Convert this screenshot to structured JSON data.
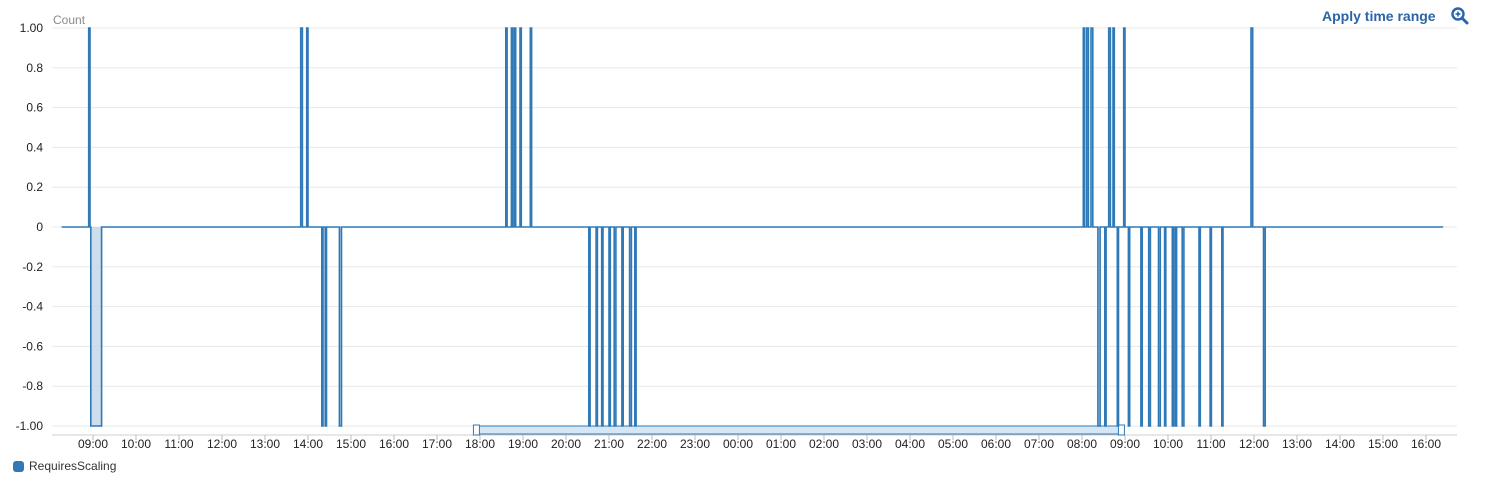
{
  "toolbar": {
    "apply_label": "Apply time range",
    "zoom_icon": "magnifier-icon"
  },
  "colors": {
    "series": "#2f79b7",
    "fill": "#bdd2e6",
    "grid": "#e8e8e8",
    "accent": "#2b64a8",
    "navigator": "#d6e6f5"
  },
  "chart_data": {
    "type": "line",
    "ylabel": "Count",
    "ylim": [
      -1,
      1
    ],
    "yticks": [
      "1.00",
      "0.8",
      "0.6",
      "0.4",
      "0.2",
      "0",
      "-0.2",
      "-0.4",
      "-0.6",
      "-0.8",
      "-1.00"
    ],
    "xticks": [
      "09:00",
      "10:00",
      "11:00",
      "12:00",
      "13:00",
      "14:00",
      "15:00",
      "16:00",
      "17:00",
      "18:00",
      "19:00",
      "20:00",
      "21:00",
      "22:00",
      "23:00",
      "00:00",
      "01:00",
      "02:00",
      "03:00",
      "04:00",
      "05:00",
      "06:00",
      "07:00",
      "08:00",
      "09:00",
      "10:00",
      "11:00",
      "12:00",
      "13:00",
      "14:00",
      "15:00",
      "16:00"
    ],
    "navigator_range": [
      "17:55",
      "08:55"
    ],
    "series": [
      {
        "name": "RequiresScaling",
        "points": [
          [
            -0.73,
            0
          ],
          [
            -0.1,
            0
          ],
          [
            -0.1,
            1
          ],
          [
            -0.07,
            1
          ],
          [
            -0.07,
            0
          ],
          [
            -0.05,
            0
          ],
          [
            -0.05,
            -1
          ],
          [
            0.2,
            -1
          ],
          [
            0.2,
            0
          ],
          [
            4.83,
            0
          ],
          [
            4.83,
            1
          ],
          [
            4.87,
            1
          ],
          [
            4.87,
            0
          ],
          [
            4.97,
            0
          ],
          [
            4.97,
            1
          ],
          [
            5.0,
            1
          ],
          [
            5.0,
            0
          ],
          [
            5.32,
            0
          ],
          [
            5.32,
            -1
          ],
          [
            5.35,
            -1
          ],
          [
            5.35,
            0
          ],
          [
            5.4,
            0
          ],
          [
            5.4,
            -1
          ],
          [
            5.43,
            -1
          ],
          [
            5.43,
            0
          ],
          [
            5.73,
            0
          ],
          [
            5.73,
            -1
          ],
          [
            5.78,
            -1
          ],
          [
            5.78,
            0
          ],
          [
            9.6,
            0
          ],
          [
            9.6,
            1
          ],
          [
            9.63,
            1
          ],
          [
            9.63,
            0
          ],
          [
            9.73,
            0
          ],
          [
            9.73,
            1
          ],
          [
            9.76,
            1
          ],
          [
            9.76,
            0
          ],
          [
            9.8,
            0
          ],
          [
            9.8,
            1
          ],
          [
            9.83,
            1
          ],
          [
            9.83,
            0
          ],
          [
            9.93,
            0
          ],
          [
            9.93,
            1
          ],
          [
            9.96,
            1
          ],
          [
            9.96,
            0
          ],
          [
            10.17,
            0
          ],
          [
            10.17,
            1
          ],
          [
            10.2,
            1
          ],
          [
            10.2,
            0
          ],
          [
            11.53,
            0
          ],
          [
            11.53,
            -1
          ],
          [
            11.56,
            -1
          ],
          [
            11.56,
            0
          ],
          [
            11.7,
            0
          ],
          [
            11.7,
            -1
          ],
          [
            11.73,
            -1
          ],
          [
            11.73,
            0
          ],
          [
            11.83,
            0
          ],
          [
            11.83,
            -1
          ],
          [
            11.86,
            -1
          ],
          [
            11.86,
            0
          ],
          [
            12.0,
            0
          ],
          [
            12.0,
            -1
          ],
          [
            12.03,
            -1
          ],
          [
            12.03,
            0
          ],
          [
            12.12,
            0
          ],
          [
            12.12,
            -1
          ],
          [
            12.16,
            -1
          ],
          [
            12.16,
            0
          ],
          [
            12.3,
            0
          ],
          [
            12.3,
            -1
          ],
          [
            12.33,
            -1
          ],
          [
            12.33,
            0
          ],
          [
            12.48,
            0
          ],
          [
            12.48,
            -1
          ],
          [
            12.52,
            -1
          ],
          [
            12.52,
            0
          ],
          [
            12.6,
            0
          ],
          [
            12.6,
            -1
          ],
          [
            12.63,
            -1
          ],
          [
            12.63,
            0
          ],
          [
            23.03,
            0
          ],
          [
            23.03,
            1
          ],
          [
            23.06,
            1
          ],
          [
            23.06,
            0
          ],
          [
            23.11,
            0
          ],
          [
            23.11,
            1
          ],
          [
            23.15,
            1
          ],
          [
            23.15,
            0
          ],
          [
            23.21,
            0
          ],
          [
            23.21,
            1
          ],
          [
            23.25,
            1
          ],
          [
            23.25,
            0
          ],
          [
            23.37,
            0
          ],
          [
            23.37,
            -1
          ],
          [
            23.42,
            -1
          ],
          [
            23.42,
            0
          ],
          [
            23.53,
            0
          ],
          [
            23.53,
            -1
          ],
          [
            23.56,
            -1
          ],
          [
            23.56,
            0
          ],
          [
            23.62,
            0
          ],
          [
            23.62,
            1
          ],
          [
            23.66,
            1
          ],
          [
            23.66,
            0
          ],
          [
            23.72,
            0
          ],
          [
            23.72,
            1
          ],
          [
            23.75,
            1
          ],
          [
            23.75,
            0
          ],
          [
            23.82,
            0
          ],
          [
            23.82,
            -1
          ],
          [
            23.85,
            -1
          ],
          [
            23.85,
            0
          ],
          [
            23.97,
            0
          ],
          [
            23.97,
            1
          ],
          [
            24.0,
            1
          ],
          [
            24.0,
            0
          ],
          [
            24.08,
            0
          ],
          [
            24.08,
            -1
          ],
          [
            24.11,
            -1
          ],
          [
            24.11,
            0
          ],
          [
            24.37,
            0
          ],
          [
            24.37,
            -1
          ],
          [
            24.4,
            -1
          ],
          [
            24.4,
            0
          ],
          [
            24.55,
            0
          ],
          [
            24.55,
            -1
          ],
          [
            24.59,
            -1
          ],
          [
            24.59,
            0
          ],
          [
            24.78,
            0
          ],
          [
            24.78,
            -1
          ],
          [
            24.82,
            -1
          ],
          [
            24.82,
            0
          ],
          [
            24.92,
            0
          ],
          [
            24.92,
            -1
          ],
          [
            24.95,
            -1
          ],
          [
            24.95,
            0
          ],
          [
            25.1,
            0
          ],
          [
            25.1,
            -1
          ],
          [
            25.13,
            -1
          ],
          [
            25.13,
            0
          ],
          [
            25.17,
            0
          ],
          [
            25.17,
            -1
          ],
          [
            25.2,
            -1
          ],
          [
            25.2,
            0
          ],
          [
            25.33,
            0
          ],
          [
            25.33,
            -1
          ],
          [
            25.37,
            -1
          ],
          [
            25.37,
            0
          ],
          [
            25.72,
            0
          ],
          [
            25.72,
            -1
          ],
          [
            25.75,
            -1
          ],
          [
            25.75,
            0
          ],
          [
            25.98,
            0
          ],
          [
            25.98,
            -1
          ],
          [
            26.01,
            -1
          ],
          [
            26.01,
            0
          ],
          [
            26.25,
            0
          ],
          [
            26.25,
            -1
          ],
          [
            26.28,
            -1
          ],
          [
            26.28,
            0
          ],
          [
            26.93,
            0
          ],
          [
            26.93,
            1
          ],
          [
            26.97,
            1
          ],
          [
            26.97,
            0
          ],
          [
            27.22,
            0
          ],
          [
            27.22,
            -1
          ],
          [
            27.26,
            -1
          ],
          [
            27.26,
            0
          ],
          [
            31.4,
            0
          ]
        ]
      }
    ]
  }
}
